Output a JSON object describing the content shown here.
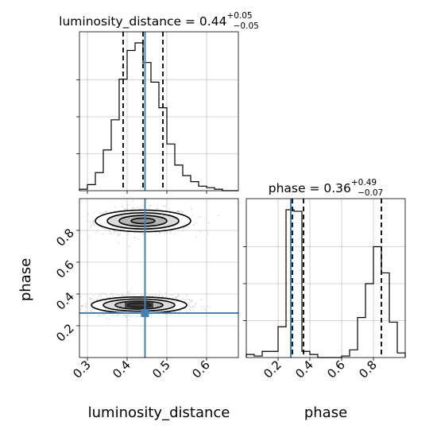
{
  "chart_data": [
    {
      "type": "histogram",
      "panel": "1D marginal, top-left",
      "title_param": "luminosity_distance",
      "title_median": "0.44",
      "title_plus": "+0.05",
      "title_minus": "−0.05",
      "xlim": [
        0.28,
        0.68
      ],
      "x_ticks": [
        "0.3",
        "0.4",
        "0.5",
        "0.6"
      ],
      "bin_edges": [
        0.28,
        0.3,
        0.32,
        0.34,
        0.36,
        0.38,
        0.4,
        0.42,
        0.44,
        0.46,
        0.48,
        0.5,
        0.52,
        0.54,
        0.56,
        0.58,
        0.6,
        0.62,
        0.64,
        0.66,
        0.68
      ],
      "relative_heights": [
        0.01,
        0.04,
        0.12,
        0.27,
        0.47,
        0.74,
        0.93,
        0.98,
        0.85,
        0.72,
        0.55,
        0.31,
        0.17,
        0.1,
        0.06,
        0.03,
        0.02,
        0.01,
        0.0,
        0.0
      ],
      "quantile_lines": [
        0.39,
        0.44,
        0.49
      ],
      "truth": 0.445
    },
    {
      "type": "histogram",
      "panel": "1D marginal, bottom-right",
      "title_param": "phase",
      "title_median": "0.36",
      "title_plus": "+0.49",
      "title_minus": "−0.07",
      "xlim": [
        0.0,
        1.0
      ],
      "x_ticks": [
        "0.2",
        "0.4",
        "0.6",
        "0.8"
      ],
      "bin_edges": [
        0.0,
        0.05,
        0.1,
        0.15,
        0.2,
        0.25,
        0.3,
        0.35,
        0.4,
        0.45,
        0.5,
        0.55,
        0.6,
        0.65,
        0.7,
        0.75,
        0.8,
        0.85,
        0.9,
        0.95,
        1.0
      ],
      "relative_heights": [
        0.02,
        0.01,
        0.04,
        0.04,
        0.2,
        0.96,
        0.95,
        0.04,
        0.02,
        0.0,
        0.0,
        0.0,
        0.01,
        0.05,
        0.26,
        0.48,
        0.72,
        0.55,
        0.23,
        0.03
      ],
      "quantile_lines": [
        0.29,
        0.36,
        0.85
      ],
      "truth": 0.28
    },
    {
      "type": "heatmap",
      "panel": "2D posterior, bottom-left",
      "xlim": [
        0.28,
        0.68
      ],
      "ylim": [
        0.0,
        1.0
      ],
      "x_ticks": [
        "0.3",
        "0.4",
        "0.5",
        "0.6"
      ],
      "y_ticks": [
        "0.2",
        "0.4",
        "0.6",
        "0.8"
      ],
      "xlabel": "luminosity_distance",
      "ylabel": "phase",
      "modes": [
        {
          "x_center": 0.44,
          "y_center": 0.86,
          "x_spread": 0.06,
          "y_spread": 0.04
        },
        {
          "x_center": 0.43,
          "y_center": 0.33,
          "x_spread": 0.06,
          "y_spread": 0.03
        }
      ],
      "truth": {
        "x": 0.445,
        "y": 0.28
      }
    }
  ],
  "axis_labels": {
    "bottom_left": "luminosity_distance",
    "bottom_right": "phase",
    "left": "phase"
  },
  "colors": {
    "truth": "#4682b4",
    "hist": "#000000",
    "grid": "#b0b0b0",
    "samples": "#9a9a9a"
  }
}
